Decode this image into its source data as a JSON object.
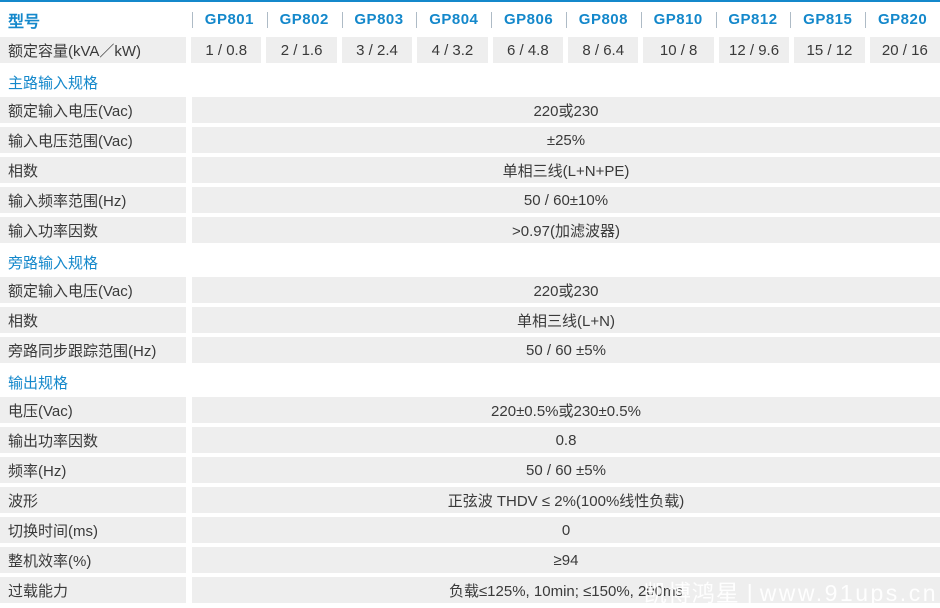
{
  "colors": {
    "accent_blue": "#1488cb",
    "cell_gray": "#eeeeee",
    "text": "#3a3a3a",
    "separator_gray": "#aebbc6"
  },
  "header": {
    "model_label": "型号",
    "models": [
      "GP801",
      "GP802",
      "GP803",
      "GP804",
      "GP806",
      "GP808",
      "GP810",
      "GP812",
      "GP815",
      "GP820"
    ]
  },
  "capacity_row": {
    "label": "额定容量(kVA／kW)",
    "values": [
      "1 / 0.8",
      "2 / 1.6",
      "3 / 2.4",
      "4 / 3.2",
      "6 / 4.8",
      "8 / 6.4",
      "10 / 8",
      "12 / 9.6",
      "15 / 12",
      "20 / 16"
    ]
  },
  "sections": [
    {
      "title": "主路输入规格",
      "rows": [
        {
          "label": "额定输入电压(Vac)",
          "value": "220或230"
        },
        {
          "label": "输入电压范围(Vac)",
          "value": "±25%"
        },
        {
          "label": "相数",
          "value": "单相三线(L+N+PE)"
        },
        {
          "label": "输入频率范围(Hz)",
          "value": "50 / 60±10%"
        },
        {
          "label": "输入功率因数",
          "value": ">0.97(加滤波器)"
        }
      ]
    },
    {
      "title": "旁路输入规格",
      "rows": [
        {
          "label": "额定输入电压(Vac)",
          "value": "220或230"
        },
        {
          "label": "相数",
          "value": "单相三线(L+N)"
        },
        {
          "label": "旁路同步跟踪范围(Hz)",
          "value": "50 / 60 ±5%"
        }
      ]
    },
    {
      "title": "输出规格",
      "rows": [
        {
          "label": "电压(Vac)",
          "value": "220±0.5%或230±0.5%"
        },
        {
          "label": "输出功率因数",
          "value": "0.8"
        },
        {
          "label": "频率(Hz)",
          "value": "50 / 60 ±5%"
        },
        {
          "label": "波形",
          "value": "正弦波 THDV ≤ 2%(100%线性负载)"
        },
        {
          "label": "切换时间(ms)",
          "value": "0"
        },
        {
          "label": "整机效率(%)",
          "value": "≥94"
        },
        {
          "label": "过载能力",
          "value": "负载≤125%, 10min; ≤150%, 200ms"
        }
      ]
    }
  ],
  "watermark": {
    "brand": "凯博鸿星",
    "separator": "|",
    "url": "www.91ups.cn"
  }
}
